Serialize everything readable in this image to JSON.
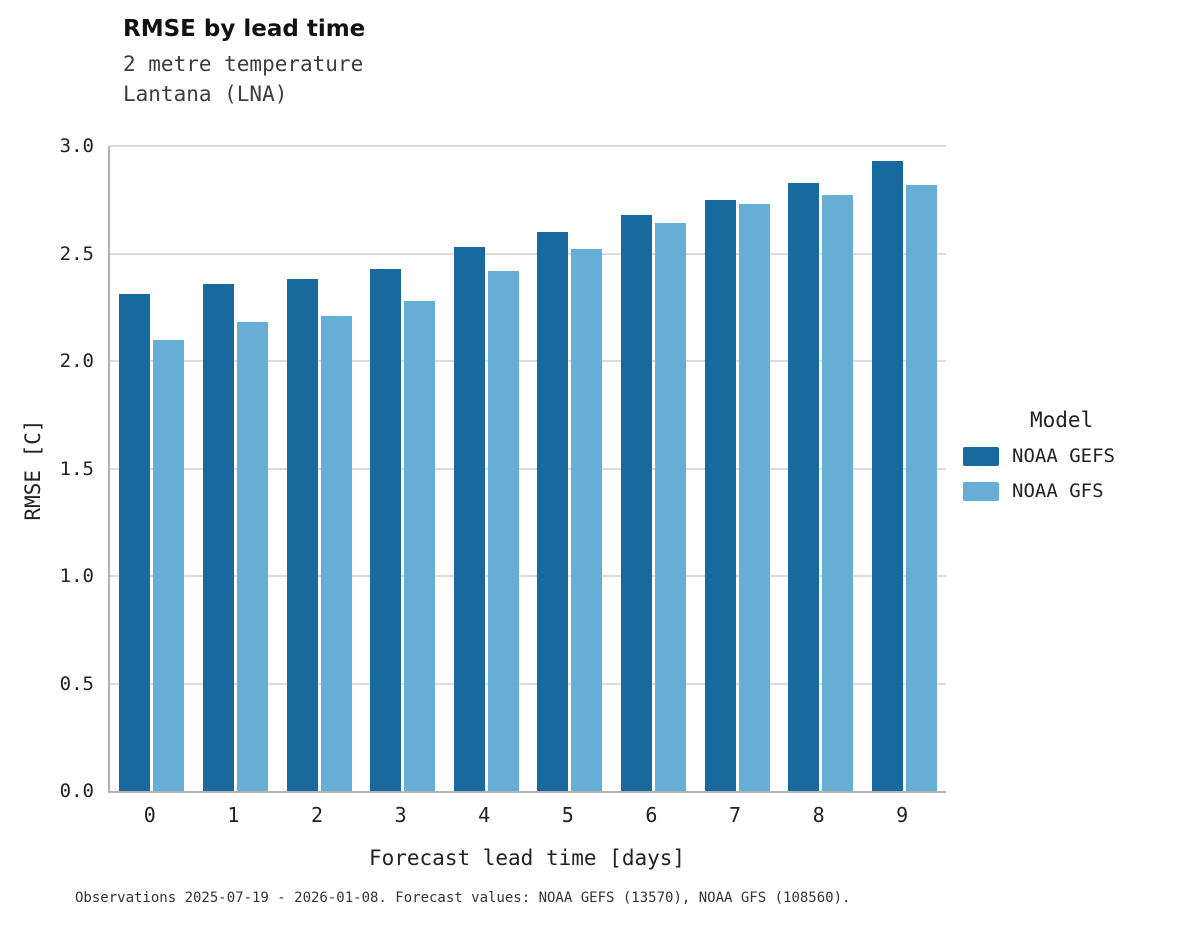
{
  "header": {
    "title": "RMSE by lead time",
    "subtitle1": "2 metre temperature",
    "subtitle2": "Lantana (LNA)"
  },
  "legend": {
    "title": "Model",
    "entries": [
      {
        "label": "NOAA GEFS",
        "color": "#17699e"
      },
      {
        "label": "NOAA GFS",
        "color": "#66aed6"
      }
    ]
  },
  "footer": {
    "caption": "Observations 2025-07-19 - 2026-01-08. Forecast values: NOAA GEFS (13570), NOAA GFS (108560)."
  },
  "chart_data": {
    "type": "bar",
    "title": "RMSE by lead time",
    "subtitle": [
      "2 metre temperature",
      "Lantana (LNA)"
    ],
    "categories": [
      "0",
      "1",
      "2",
      "3",
      "4",
      "5",
      "6",
      "7",
      "8",
      "9"
    ],
    "series": [
      {
        "name": "NOAA GEFS",
        "color": "#17699e",
        "values": [
          2.31,
          2.36,
          2.38,
          2.43,
          2.53,
          2.6,
          2.68,
          2.75,
          2.83,
          2.93
        ]
      },
      {
        "name": "NOAA GFS",
        "color": "#66aed6",
        "values": [
          2.1,
          2.18,
          2.21,
          2.28,
          2.42,
          2.52,
          2.64,
          2.73,
          2.77,
          2.82
        ]
      }
    ],
    "xlabel": "Forecast lead time [days]",
    "ylabel": "RMSE [C]",
    "ylim": [
      0.0,
      3.0
    ],
    "yticks": [
      0.0,
      0.5,
      1.0,
      1.5,
      2.0,
      2.5,
      3.0
    ],
    "grid": true,
    "legend_title": "Model",
    "legend_position": "right"
  }
}
